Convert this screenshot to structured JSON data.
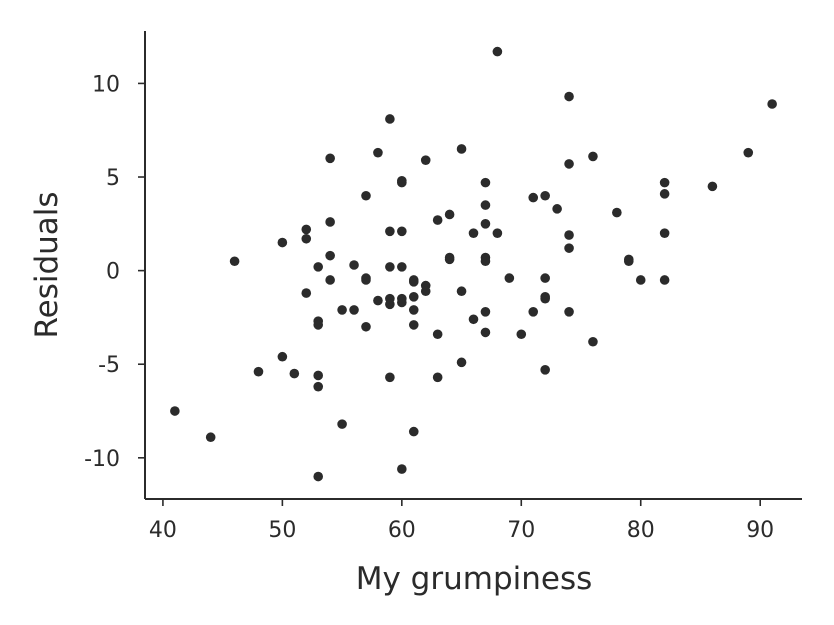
{
  "chart_data": {
    "type": "scatter",
    "title": "",
    "xlabel": "My grumpiness",
    "ylabel": "Residuals",
    "xlim": [
      38.5,
      93.5
    ],
    "ylim": [
      -12.2,
      12.8
    ],
    "x_ticks": [
      40,
      50,
      60,
      70,
      80,
      90
    ],
    "y_ticks": [
      -10,
      -5,
      0,
      5,
      10
    ],
    "grid": false,
    "legend": "none",
    "marker_color": "#2b2b2b",
    "points": [
      {
        "x": 41,
        "y": -7.5
      },
      {
        "x": 44,
        "y": -8.9
      },
      {
        "x": 46,
        "y": 0.5
      },
      {
        "x": 48,
        "y": -5.4
      },
      {
        "x": 50,
        "y": 1.5
      },
      {
        "x": 50,
        "y": -4.6
      },
      {
        "x": 51,
        "y": -5.5
      },
      {
        "x": 52,
        "y": 2.2
      },
      {
        "x": 52,
        "y": 1.7
      },
      {
        "x": 52,
        "y": -1.2
      },
      {
        "x": 53,
        "y": 0.2
      },
      {
        "x": 53,
        "y": -2.7
      },
      {
        "x": 53,
        "y": -2.9
      },
      {
        "x": 53,
        "y": -5.6
      },
      {
        "x": 53,
        "y": -6.2
      },
      {
        "x": 53,
        "y": -11.0
      },
      {
        "x": 54,
        "y": 6.0
      },
      {
        "x": 54,
        "y": 2.6
      },
      {
        "x": 54,
        "y": 0.8
      },
      {
        "x": 54,
        "y": -0.5
      },
      {
        "x": 55,
        "y": -2.1
      },
      {
        "x": 55,
        "y": -8.2
      },
      {
        "x": 56,
        "y": 0.3
      },
      {
        "x": 56,
        "y": -2.1
      },
      {
        "x": 57,
        "y": 4.0
      },
      {
        "x": 57,
        "y": -0.4
      },
      {
        "x": 57,
        "y": -0.5
      },
      {
        "x": 57,
        "y": -3.0
      },
      {
        "x": 58,
        "y": 6.3
      },
      {
        "x": 58,
        "y": -1.6
      },
      {
        "x": 59,
        "y": 8.1
      },
      {
        "x": 59,
        "y": 2.1
      },
      {
        "x": 59,
        "y": 0.2
      },
      {
        "x": 59,
        "y": -1.5
      },
      {
        "x": 59,
        "y": -1.8
      },
      {
        "x": 59,
        "y": -5.7
      },
      {
        "x": 60,
        "y": 4.8
      },
      {
        "x": 60,
        "y": 4.7
      },
      {
        "x": 60,
        "y": 2.1
      },
      {
        "x": 60,
        "y": 0.2
      },
      {
        "x": 60,
        "y": -1.5
      },
      {
        "x": 60,
        "y": -1.7
      },
      {
        "x": 60,
        "y": -10.6
      },
      {
        "x": 61,
        "y": -0.5
      },
      {
        "x": 61,
        "y": -0.6
      },
      {
        "x": 61,
        "y": -1.4
      },
      {
        "x": 61,
        "y": -2.1
      },
      {
        "x": 61,
        "y": -2.9
      },
      {
        "x": 61,
        "y": -8.6
      },
      {
        "x": 62,
        "y": 5.9
      },
      {
        "x": 62,
        "y": -0.8
      },
      {
        "x": 62,
        "y": -1.1
      },
      {
        "x": 63,
        "y": 2.7
      },
      {
        "x": 63,
        "y": -3.4
      },
      {
        "x": 63,
        "y": -5.7
      },
      {
        "x": 64,
        "y": 3.0
      },
      {
        "x": 64,
        "y": 0.7
      },
      {
        "x": 64,
        "y": 0.6
      },
      {
        "x": 65,
        "y": 6.5
      },
      {
        "x": 65,
        "y": -1.1
      },
      {
        "x": 65,
        "y": -4.9
      },
      {
        "x": 66,
        "y": 2.0
      },
      {
        "x": 66,
        "y": -2.6
      },
      {
        "x": 67,
        "y": 4.7
      },
      {
        "x": 67,
        "y": 3.5
      },
      {
        "x": 67,
        "y": 2.5
      },
      {
        "x": 67,
        "y": 0.7
      },
      {
        "x": 67,
        "y": 0.5
      },
      {
        "x": 67,
        "y": -2.2
      },
      {
        "x": 67,
        "y": -3.3
      },
      {
        "x": 68,
        "y": 11.7
      },
      {
        "x": 68,
        "y": 2.0
      },
      {
        "x": 69,
        "y": -0.4
      },
      {
        "x": 70,
        "y": -3.4
      },
      {
        "x": 71,
        "y": 3.9
      },
      {
        "x": 71,
        "y": -2.2
      },
      {
        "x": 72,
        "y": 4.0
      },
      {
        "x": 72,
        "y": -0.4
      },
      {
        "x": 72,
        "y": -1.4
      },
      {
        "x": 72,
        "y": -1.5
      },
      {
        "x": 72,
        "y": -5.3
      },
      {
        "x": 73,
        "y": 3.3
      },
      {
        "x": 74,
        "y": 9.3
      },
      {
        "x": 74,
        "y": 5.7
      },
      {
        "x": 74,
        "y": 1.9
      },
      {
        "x": 74,
        "y": 1.2
      },
      {
        "x": 74,
        "y": -2.2
      },
      {
        "x": 76,
        "y": 6.1
      },
      {
        "x": 76,
        "y": -3.8
      },
      {
        "x": 78,
        "y": 3.1
      },
      {
        "x": 79,
        "y": 0.6
      },
      {
        "x": 79,
        "y": 0.5
      },
      {
        "x": 80,
        "y": -0.5
      },
      {
        "x": 82,
        "y": 4.7
      },
      {
        "x": 82,
        "y": 4.1
      },
      {
        "x": 82,
        "y": 2.0
      },
      {
        "x": 82,
        "y": -0.5
      },
      {
        "x": 86,
        "y": 4.5
      },
      {
        "x": 89,
        "y": 6.3
      },
      {
        "x": 91,
        "y": 8.9
      }
    ]
  }
}
